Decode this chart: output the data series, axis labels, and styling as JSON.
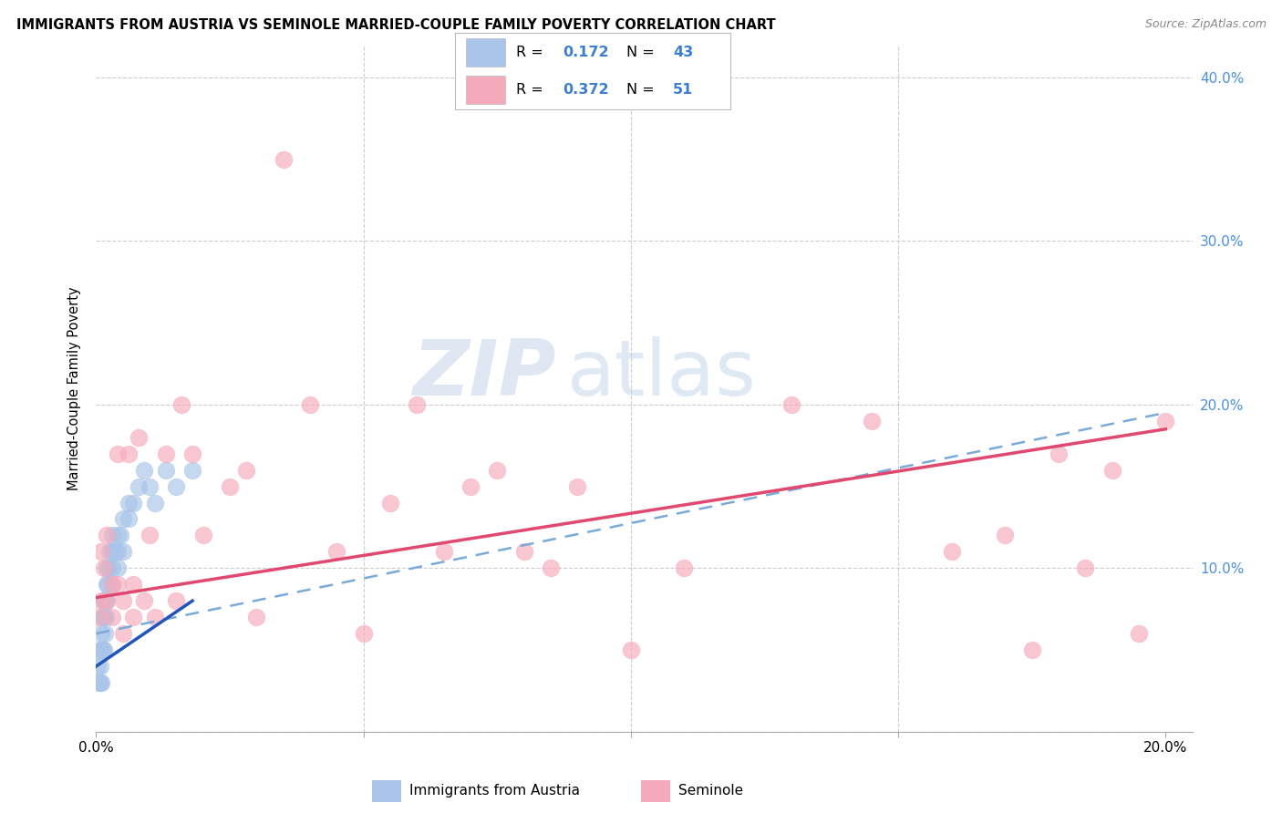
{
  "title": "IMMIGRANTS FROM AUSTRIA VS SEMINOLE MARRIED-COUPLE FAMILY POVERTY CORRELATION CHART",
  "source": "Source: ZipAtlas.com",
  "ylabel": "Married-Couple Family Poverty",
  "xlim": [
    0,
    0.205
  ],
  "ylim": [
    0,
    0.42
  ],
  "R1": 0.172,
  "N1": 43,
  "R2": 0.372,
  "N2": 51,
  "color_blue": "#a8c4e8",
  "color_pink": "#f5aabb",
  "line_blue": "#2255bb",
  "line_pink": "#e04870",
  "line_blue_dash_color": "#7aaad8",
  "legend1_label": "Immigrants from Austria",
  "legend2_label": "Seminole",
  "blue_x": [
    0.0003,
    0.0005,
    0.0006,
    0.0007,
    0.0008,
    0.0009,
    0.001,
    0.001,
    0.0012,
    0.0013,
    0.0014,
    0.0015,
    0.0015,
    0.0016,
    0.0017,
    0.0018,
    0.002,
    0.002,
    0.002,
    0.0022,
    0.0023,
    0.0025,
    0.003,
    0.003,
    0.003,
    0.003,
    0.0035,
    0.004,
    0.004,
    0.004,
    0.0045,
    0.005,
    0.005,
    0.006,
    0.006,
    0.007,
    0.008,
    0.009,
    0.01,
    0.011,
    0.013,
    0.015,
    0.018
  ],
  "blue_y": [
    0.04,
    0.03,
    0.05,
    0.03,
    0.04,
    0.05,
    0.03,
    0.06,
    0.07,
    0.05,
    0.05,
    0.08,
    0.07,
    0.08,
    0.06,
    0.07,
    0.08,
    0.09,
    0.1,
    0.09,
    0.1,
    0.11,
    0.1,
    0.11,
    0.09,
    0.12,
    0.11,
    0.1,
    0.12,
    0.11,
    0.12,
    0.13,
    0.11,
    0.13,
    0.14,
    0.14,
    0.15,
    0.16,
    0.15,
    0.14,
    0.16,
    0.15,
    0.16
  ],
  "pink_x": [
    0.0005,
    0.001,
    0.001,
    0.0015,
    0.002,
    0.002,
    0.003,
    0.003,
    0.004,
    0.004,
    0.005,
    0.005,
    0.006,
    0.007,
    0.007,
    0.008,
    0.009,
    0.01,
    0.011,
    0.013,
    0.015,
    0.016,
    0.018,
    0.02,
    0.025,
    0.028,
    0.03,
    0.035,
    0.04,
    0.045,
    0.05,
    0.055,
    0.06,
    0.065,
    0.07,
    0.075,
    0.08,
    0.085,
    0.09,
    0.1,
    0.11,
    0.13,
    0.145,
    0.16,
    0.17,
    0.175,
    0.18,
    0.185,
    0.19,
    0.195,
    0.2
  ],
  "pink_y": [
    0.07,
    0.08,
    0.11,
    0.1,
    0.08,
    0.12,
    0.09,
    0.07,
    0.09,
    0.17,
    0.08,
    0.06,
    0.17,
    0.09,
    0.07,
    0.18,
    0.08,
    0.12,
    0.07,
    0.17,
    0.08,
    0.2,
    0.17,
    0.12,
    0.15,
    0.16,
    0.07,
    0.35,
    0.2,
    0.11,
    0.06,
    0.14,
    0.2,
    0.11,
    0.15,
    0.16,
    0.11,
    0.1,
    0.15,
    0.05,
    0.1,
    0.2,
    0.19,
    0.11,
    0.12,
    0.05,
    0.17,
    0.1,
    0.16,
    0.06,
    0.19
  ]
}
